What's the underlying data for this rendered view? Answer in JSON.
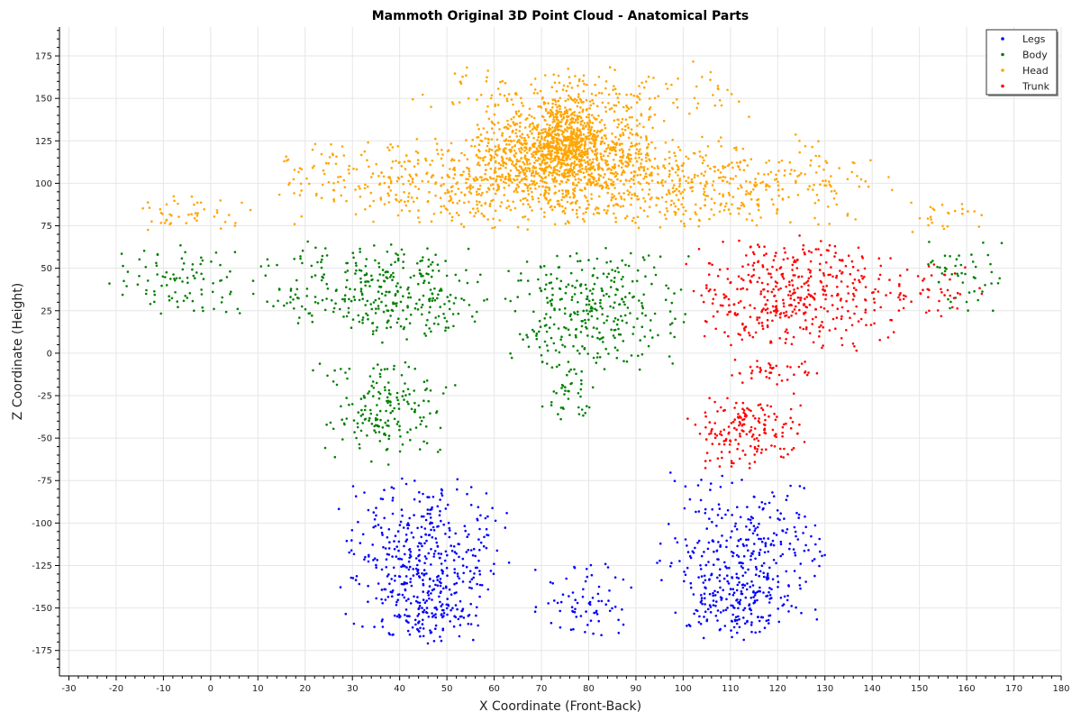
{
  "chart_data": {
    "type": "scatter",
    "title": "Mammoth Original 3D Point Cloud - Anatomical Parts",
    "xlabel": "X Coordinate (Front-Back)",
    "ylabel": "Z Coordinate (Height)",
    "xlim": [
      -32,
      180
    ],
    "ylim": [
      -190,
      192
    ],
    "xticks": [
      -30,
      -20,
      -10,
      0,
      10,
      20,
      30,
      40,
      50,
      60,
      70,
      80,
      90,
      100,
      110,
      120,
      130,
      140,
      150,
      160,
      170,
      180
    ],
    "yticks": [
      -175,
      -150,
      -125,
      -100,
      -75,
      -50,
      -25,
      0,
      25,
      50,
      75,
      100,
      125,
      150,
      175
    ],
    "grid": true,
    "legend_position": "top-right",
    "series": [
      {
        "name": "Legs",
        "color": "#0000ff",
        "regions": [
          {
            "x": [
              26,
              64
            ],
            "y": [
              -172,
              -68
            ],
            "n": 380
          },
          {
            "x": [
              35,
              58
            ],
            "y": [
              -172,
              -125
            ],
            "n": 120
          },
          {
            "x": [
              68,
              90
            ],
            "y": [
              -172,
              -120
            ],
            "n": 70
          },
          {
            "x": [
              93,
              132
            ],
            "y": [
              -172,
              -68
            ],
            "n": 320
          },
          {
            "x": [
              100,
              124
            ],
            "y": [
              -172,
              -125
            ],
            "n": 120
          }
        ]
      },
      {
        "name": "Body",
        "color": "#008000",
        "regions": [
          {
            "x": [
              -22,
              10
            ],
            "y": [
              18,
              70
            ],
            "n": 90
          },
          {
            "x": [
              10,
              62
            ],
            "y": [
              5,
              68
            ],
            "n": 330
          },
          {
            "x": [
              60,
              102
            ],
            "y": [
              -15,
              68
            ],
            "n": 320
          },
          {
            "x": [
              70,
              82
            ],
            "y": [
              -42,
              -5
            ],
            "n": 40
          },
          {
            "x": [
              21,
              52
            ],
            "y": [
              -68,
              0
            ],
            "n": 180
          },
          {
            "x": [
              148,
              170
            ],
            "y": [
              20,
              68
            ],
            "n": 50
          }
        ]
      },
      {
        "name": "Head",
        "color": "#ffa500",
        "regions": [
          {
            "x": [
              10,
              145
            ],
            "y": [
              72,
              130
            ],
            "n": 1200
          },
          {
            "x": [
              55,
              95
            ],
            "y": [
              95,
              148
            ],
            "n": 900
          },
          {
            "x": [
              70,
              82
            ],
            "y": [
              100,
              165
            ],
            "n": 200
          },
          {
            "x": [
              -20,
              12
            ],
            "y": [
              70,
              95
            ],
            "n": 45
          },
          {
            "x": [
              40,
              118
            ],
            "y": [
              130,
              172
            ],
            "n": 170
          },
          {
            "x": [
              145,
              165
            ],
            "y": [
              70,
              90
            ],
            "n": 25
          }
        ]
      },
      {
        "name": "Trunk",
        "color": "#ff0000",
        "regions": [
          {
            "x": [
              100,
              147
            ],
            "y": [
              0,
              70
            ],
            "n": 420
          },
          {
            "x": [
              140,
              165
            ],
            "y": [
              18,
              55
            ],
            "n": 50
          },
          {
            "x": [
              107,
              130
            ],
            "y": [
              -22,
              0
            ],
            "n": 40
          },
          {
            "x": [
              100,
              127
            ],
            "y": [
              -70,
              -20
            ],
            "n": 170
          }
        ]
      }
    ]
  }
}
